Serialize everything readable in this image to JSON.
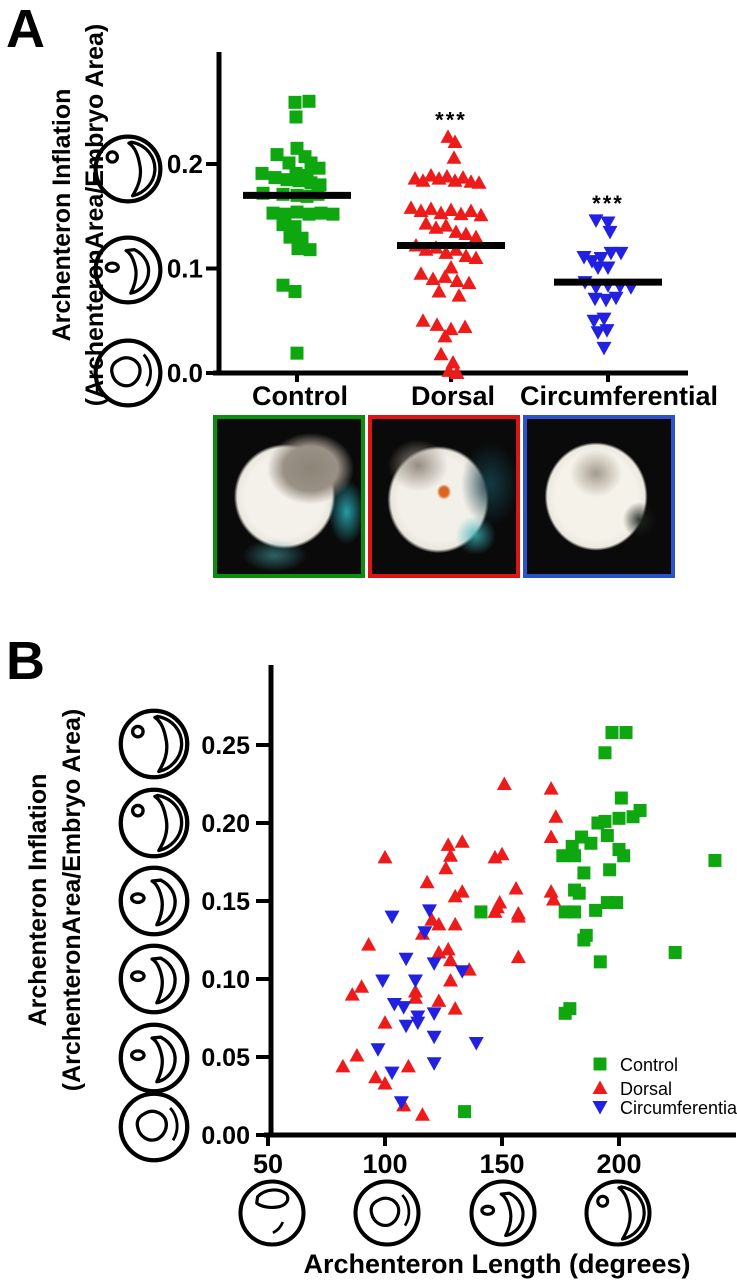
{
  "figure": {
    "background": "#ffffff",
    "panel_a_letter": "A",
    "panel_b_letter": "B"
  },
  "colors": {
    "control": "#0FA70F",
    "dorsal": "#EE1B1B",
    "circumferential": "#2121DF",
    "axis": "#000000",
    "photo_border_control": "#0B8E0B",
    "photo_border_dorsal": "#DE1414",
    "photo_border_circumferential": "#2B52CC"
  },
  "panel_a": {
    "y_title_line1": "Archenteron Inflation",
    "y_title_line2": "(ArchenteronArea/Embryo Area)",
    "schematics": [
      "embryo-high-inflation-icon",
      "embryo-mid-inflation-icon",
      "embryo-low-inflation-icon"
    ]
  },
  "panel_b": {
    "y_title_line1": "Archenteron Inflation",
    "y_title_line2": "(ArchenteronArea/Embryo Area)",
    "x_title": "Archenteron Length (degrees)",
    "left_schematics": [
      "embryo-high-inflation-icon",
      "embryo-high-inflation-icon",
      "embryo-mid-inflation-icon",
      "embryo-mid-inflation-icon",
      "embryo-mid-inflation-icon",
      "embryo-low-inflation-icon"
    ],
    "bottom_schematics": [
      "embryo-short-archenteron-icon",
      "embryo-low-inflation-icon",
      "embryo-mid-inflation-icon",
      "embryo-high-inflation-icon"
    ]
  },
  "photos": [
    {
      "name": "control-embryo-photo",
      "border_color": "#0B8E0B"
    },
    {
      "name": "dorsal-embryo-photo",
      "border_color": "#DE1414"
    },
    {
      "name": "circumferential-embryo-photo",
      "border_color": "#2B52CC"
    }
  ],
  "chart_data": [
    {
      "id": "panel_a",
      "type": "scatter",
      "subtype": "column-dot-plot",
      "title": "",
      "ylabel": "Archenteron Inflation (ArchenteronArea/Embryo Area)",
      "categories": [
        "Control",
        "Dorsal",
        "Circumferential"
      ],
      "ylim": [
        0.0,
        0.29
      ],
      "yticks": [
        {
          "label": "0.2",
          "value": 0.2
        },
        {
          "label": "0.1",
          "value": 0.1
        },
        {
          "label": "0.0",
          "value": 0.0
        }
      ],
      "grid": false,
      "means": [
        {
          "category": "Control",
          "value": 0.17
        },
        {
          "category": "Dorsal",
          "value": 0.122
        },
        {
          "category": "Circumferential",
          "value": 0.087
        }
      ],
      "significance": [
        {
          "category_index": 1,
          "label": "***",
          "y_value": 0.235
        },
        {
          "category_index": 2,
          "label": "***",
          "y_value": 0.155
        }
      ],
      "series": [
        {
          "name": "Control",
          "marker": "square",
          "color": "#0FA70F",
          "points_dx_value": [
            [
              -2,
              0.259
            ],
            [
              12,
              0.26
            ],
            [
              -1,
              0.245
            ],
            [
              0,
              0.215
            ],
            [
              -20,
              0.209
            ],
            [
              8,
              0.207
            ],
            [
              -8,
              0.201
            ],
            [
              14,
              0.201
            ],
            [
              22,
              0.196
            ],
            [
              -35,
              0.191
            ],
            [
              -1,
              0.191
            ],
            [
              10,
              0.189
            ],
            [
              -22,
              0.187
            ],
            [
              -10,
              0.185
            ],
            [
              2,
              0.184
            ],
            [
              14,
              0.182
            ],
            [
              23,
              0.18
            ],
            [
              -34,
              0.172
            ],
            [
              -14,
              0.171
            ],
            [
              0,
              0.17
            ],
            [
              10,
              0.169
            ],
            [
              21,
              0.171
            ],
            [
              -24,
              0.153
            ],
            [
              -12,
              0.152
            ],
            [
              0,
              0.154
            ],
            [
              12,
              0.152
            ],
            [
              24,
              0.153
            ],
            [
              36,
              0.152
            ],
            [
              -14,
              0.142
            ],
            [
              -2,
              0.14
            ],
            [
              -7,
              0.13
            ],
            [
              5,
              0.129
            ],
            [
              1,
              0.119
            ],
            [
              13,
              0.118
            ],
            [
              -14,
              0.084
            ],
            [
              -2,
              0.078
            ],
            [
              0,
              0.019
            ]
          ]
        },
        {
          "name": "Dorsal",
          "marker": "triangle-up",
          "color": "#EE1B1B",
          "points_dx_value": [
            [
              -3,
              0.226
            ],
            [
              4,
              0.221
            ],
            [
              3,
              0.206
            ],
            [
              -36,
              0.186
            ],
            [
              -28,
              0.184
            ],
            [
              -20,
              0.189
            ],
            [
              -12,
              0.186
            ],
            [
              -4,
              0.188
            ],
            [
              4,
              0.184
            ],
            [
              12,
              0.187
            ],
            [
              20,
              0.183
            ],
            [
              28,
              0.182
            ],
            [
              -40,
              0.158
            ],
            [
              -30,
              0.155
            ],
            [
              -20,
              0.157
            ],
            [
              -10,
              0.153
            ],
            [
              0,
              0.156
            ],
            [
              10,
              0.152
            ],
            [
              20,
              0.155
            ],
            [
              30,
              0.151
            ],
            [
              -25,
              0.143
            ],
            [
              -15,
              0.139
            ],
            [
              -5,
              0.141
            ],
            [
              5,
              0.135
            ],
            [
              15,
              0.133
            ],
            [
              25,
              0.13
            ],
            [
              -35,
              0.122
            ],
            [
              -25,
              0.118
            ],
            [
              -15,
              0.12
            ],
            [
              -5,
              0.115
            ],
            [
              5,
              0.118
            ],
            [
              15,
              0.112
            ],
            [
              25,
              0.11
            ],
            [
              0,
              0.101
            ],
            [
              -30,
              0.095
            ],
            [
              -18,
              0.09
            ],
            [
              -6,
              0.092
            ],
            [
              6,
              0.088
            ],
            [
              18,
              0.086
            ],
            [
              -12,
              0.078
            ],
            [
              8,
              0.074
            ],
            [
              -28,
              0.05
            ],
            [
              -14,
              0.046
            ],
            [
              0,
              0.042
            ],
            [
              14,
              0.044
            ],
            [
              -6,
              0.035
            ],
            [
              -10,
              0.018
            ],
            [
              2,
              0.01
            ],
            [
              -2,
              0.002
            ],
            [
              6,
              0.0
            ]
          ]
        },
        {
          "name": "Circumferential",
          "marker": "triangle-down",
          "color": "#2121DF",
          "points_dx_value": [
            [
              -12,
              0.146
            ],
            [
              0,
              0.144
            ],
            [
              2,
              0.135
            ],
            [
              -24,
              0.111
            ],
            [
              -16,
              0.107
            ],
            [
              -7,
              0.11
            ],
            [
              3,
              0.115
            ],
            [
              13,
              0.115
            ],
            [
              -10,
              0.101
            ],
            [
              0,
              0.101
            ],
            [
              -23,
              0.087
            ],
            [
              -12,
              0.082
            ],
            [
              0,
              0.084
            ],
            [
              12,
              0.083
            ],
            [
              23,
              0.082
            ],
            [
              -13,
              0.071
            ],
            [
              -2,
              0.07
            ],
            [
              8,
              0.072
            ],
            [
              -14,
              0.05
            ],
            [
              -4,
              0.052
            ],
            [
              -10,
              0.039
            ],
            [
              -1,
              0.041
            ],
            [
              -4,
              0.024
            ]
          ]
        }
      ]
    },
    {
      "id": "panel_b",
      "type": "scatter",
      "xlabel": "Archenteron Length (degrees)",
      "ylabel": "Archenteron Inflation (ArchenteronArea/Embryo Area)",
      "xlim": [
        40,
        250
      ],
      "ylim": [
        0.0,
        0.29
      ],
      "xticks": [
        {
          "label": "50",
          "value": 50
        },
        {
          "label": "100",
          "value": 100
        },
        {
          "label": "150",
          "value": 150
        },
        {
          "label": "200",
          "value": 200
        }
      ],
      "yticks": [
        {
          "label": "0.25",
          "value": 0.25
        },
        {
          "label": "0.20",
          "value": 0.2
        },
        {
          "label": "0.15",
          "value": 0.15
        },
        {
          "label": "0.10",
          "value": 0.1
        },
        {
          "label": "0.05",
          "value": 0.05
        },
        {
          "label": "0.00",
          "value": 0.0
        }
      ],
      "grid": false,
      "legend": {
        "position": "right-middle"
      },
      "series": [
        {
          "name": "Control",
          "marker": "square",
          "color": "#0FA70F",
          "points": [
            [
              197,
              0.258
            ],
            [
              203,
              0.258
            ],
            [
              194,
              0.245
            ],
            [
              201,
              0.216
            ],
            [
              209,
              0.208
            ],
            [
              206,
              0.204
            ],
            [
              200,
              0.203
            ],
            [
              194,
              0.201
            ],
            [
              191,
              0.2
            ],
            [
              195,
              0.192
            ],
            [
              184,
              0.191
            ],
            [
              188,
              0.187
            ],
            [
              180,
              0.185
            ],
            [
              200,
              0.183
            ],
            [
              202,
              0.179
            ],
            [
              181,
              0.179
            ],
            [
              176,
              0.179
            ],
            [
              241,
              0.176
            ],
            [
              196,
              0.17
            ],
            [
              185,
              0.168
            ],
            [
              181,
              0.157
            ],
            [
              183,
              0.155
            ],
            [
              195,
              0.149
            ],
            [
              199,
              0.149
            ],
            [
              190,
              0.144
            ],
            [
              177,
              0.143
            ],
            [
              181,
              0.143
            ],
            [
              141,
              0.143
            ],
            [
              186,
              0.128
            ],
            [
              185,
              0.125
            ],
            [
              224,
              0.117
            ],
            [
              192,
              0.111
            ],
            [
              179,
              0.081
            ],
            [
              177,
              0.078
            ],
            [
              134,
              0.015
            ]
          ]
        },
        {
          "name": "Dorsal",
          "marker": "triangle-up",
          "color": "#EE1B1B",
          "points": [
            [
              151,
              0.225
            ],
            [
              171,
              0.222
            ],
            [
              173,
              0.204
            ],
            [
              171,
              0.191
            ],
            [
              133,
              0.188
            ],
            [
              127,
              0.186
            ],
            [
              150,
              0.18
            ],
            [
              128,
              0.179
            ],
            [
              100,
              0.178
            ],
            [
              147,
              0.178
            ],
            [
              126,
              0.171
            ],
            [
              118,
              0.162
            ],
            [
              156,
              0.158
            ],
            [
              133,
              0.156
            ],
            [
              171,
              0.156
            ],
            [
              130,
              0.153
            ],
            [
              172,
              0.151
            ],
            [
              149,
              0.149
            ],
            [
              148,
              0.146
            ],
            [
              147,
              0.143
            ],
            [
              157,
              0.142
            ],
            [
              120,
              0.138
            ],
            [
              123,
              0.135
            ],
            [
              130,
              0.135
            ],
            [
              157,
              0.14
            ],
            [
              116,
              0.129
            ],
            [
              93,
              0.122
            ],
            [
              127,
              0.119
            ],
            [
              123,
              0.117
            ],
            [
              157,
              0.114
            ],
            [
              128,
              0.112
            ],
            [
              136,
              0.106
            ],
            [
              128,
              0.099
            ],
            [
              90,
              0.095
            ],
            [
              113,
              0.092
            ],
            [
              86,
              0.09
            ],
            [
              113,
              0.088
            ],
            [
              123,
              0.086
            ],
            [
              130,
              0.081
            ],
            [
              100,
              0.072
            ],
            [
              88,
              0.051
            ],
            [
              82,
              0.044
            ],
            [
              110,
              0.044
            ],
            [
              96,
              0.037
            ],
            [
              100,
              0.033
            ],
            [
              108,
              0.019
            ],
            [
              116,
              0.013
            ]
          ]
        },
        {
          "name": "Circumferential",
          "marker": "triangle-down",
          "color": "#2121DF",
          "points": [
            [
              119,
              0.144
            ],
            [
              103,
              0.14
            ],
            [
              117,
              0.13
            ],
            [
              109,
              0.113
            ],
            [
              121,
              0.11
            ],
            [
              133,
              0.105
            ],
            [
              99,
              0.099
            ],
            [
              113,
              0.099
            ],
            [
              104,
              0.084
            ],
            [
              108,
              0.082
            ],
            [
              121,
              0.078
            ],
            [
              114,
              0.076
            ],
            [
              114,
              0.072
            ],
            [
              109,
              0.07
            ],
            [
              121,
              0.063
            ],
            [
              139,
              0.059
            ],
            [
              97,
              0.055
            ],
            [
              121,
              0.046
            ],
            [
              103,
              0.04
            ],
            [
              107,
              0.021
            ]
          ]
        }
      ]
    }
  ]
}
